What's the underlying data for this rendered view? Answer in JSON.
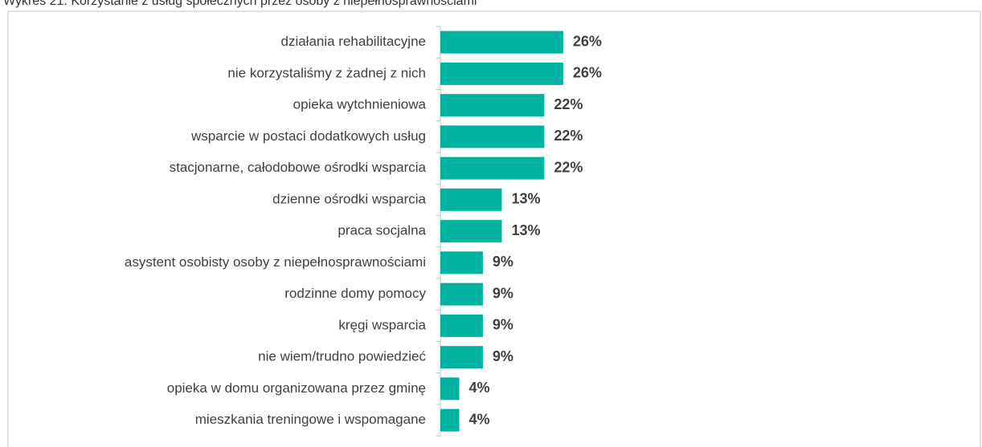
{
  "chart_data": {
    "type": "bar",
    "orientation": "horizontal",
    "title": "Wykres 21. Korzystanie z usług społecznych przez osoby z niepełnosprawnościami",
    "categories": [
      "działania rehabilitacyjne",
      "nie korzystaliśmy z żadnej z nich",
      "opieka wytchnieniowa",
      "wsparcie w postaci dodatkowych usług",
      "stacjonarne, całodobowe ośrodki wsparcia",
      "dzienne ośrodki wsparcia",
      "praca socjalna",
      "asystent osobisty osoby z niepełnosprawnościami",
      "rodzinne domy pomocy",
      "kręgi wsparcia",
      "nie wiem/trudno powiedzieć",
      "opieka w domu organizowana przez gminę",
      "mieszkania treningowe i wspomagane"
    ],
    "values": [
      26,
      26,
      22,
      22,
      22,
      13,
      13,
      9,
      9,
      9,
      9,
      4,
      4
    ],
    "value_labels": [
      "26%",
      "26%",
      "22%",
      "22%",
      "22%",
      "13%",
      "13%",
      "9%",
      "9%",
      "9%",
      "9%",
      "4%",
      "4%"
    ],
    "color": "#00b3a1"
  }
}
